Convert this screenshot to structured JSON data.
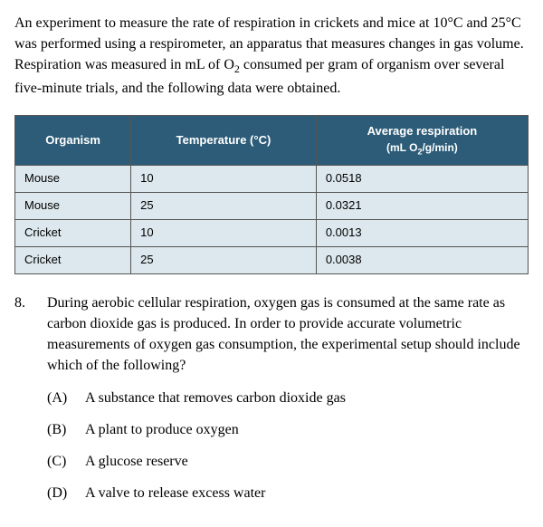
{
  "intro_html": "An experiment to measure the rate of respiration in crickets and mice at 10°C and 25°C was performed using a respirometer, an apparatus that measures changes in gas volume. Respiration was measured in mL of O<sub>2</sub> consumed per gram of organism over several five-minute trials, and the following data were obtained.",
  "table": {
    "header_bg": "#2c5c78",
    "header_fg": "#ffffff",
    "cell_bg": "#dce8ed",
    "border_color": "#555555",
    "columns": [
      {
        "label": "Organism",
        "sub": ""
      },
      {
        "label": "Temperature (°C)",
        "sub": ""
      },
      {
        "label": "Average respiration",
        "sub_html": "(mL O<sub>2</sub>/g/min)"
      }
    ],
    "rows": [
      {
        "organism": "Mouse",
        "temp": "10",
        "resp": "0.0518"
      },
      {
        "organism": "Mouse",
        "temp": "25",
        "resp": "0.0321"
      },
      {
        "organism": "Cricket",
        "temp": "10",
        "resp": "0.0013"
      },
      {
        "organism": "Cricket",
        "temp": "25",
        "resp": "0.0038"
      }
    ]
  },
  "question": {
    "number": "8.",
    "text": "During aerobic cellular respiration, oxygen gas is consumed at the same rate as carbon dioxide gas is produced. In order to provide accurate volumetric measurements of oxygen gas consumption, the experimental setup should include which of the following?",
    "choices": [
      {
        "letter": "(A)",
        "text": "A substance that removes carbon dioxide gas"
      },
      {
        "letter": "(B)",
        "text": "A plant to produce oxygen"
      },
      {
        "letter": "(C)",
        "text": "A glucose reserve"
      },
      {
        "letter": "(D)",
        "text": "A valve to release excess water"
      }
    ]
  }
}
